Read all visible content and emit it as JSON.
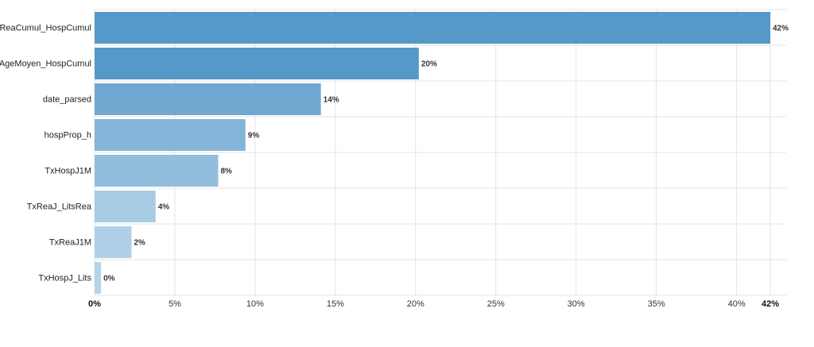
{
  "chart_data": {
    "type": "bar",
    "orientation": "horizontal",
    "title": "",
    "xlabel": "",
    "ylabel": "",
    "categories": [
      "ReaCumul_HospCumul",
      "AgeMoyen_HospCumul",
      "date_parsed",
      "hospProp_h",
      "TxHospJ1M",
      "TxReaJ_LitsRea",
      "TxReaJ1M",
      "TxHospJ_Lits"
    ],
    "values": [
      42.1,
      20.2,
      14.1,
      9.4,
      7.7,
      3.8,
      2.3,
      0.4
    ],
    "value_labels": [
      "42%",
      "20%",
      "14%",
      "9%",
      "8%",
      "4%",
      "2%",
      "0%"
    ],
    "bar_colors": [
      "#5499c7",
      "#5499c7",
      "#6fa8d0",
      "#85b5d9",
      "#92bddc",
      "#a8cbe4",
      "#b0d0e7",
      "#b5d3e8"
    ],
    "xlim": [
      0,
      42.1
    ],
    "xticks": [
      0,
      5,
      10,
      15,
      20,
      25,
      30,
      35,
      40
    ],
    "xtick_labels": [
      "0%",
      "5%",
      "10%",
      "15%",
      "20%",
      "25%",
      "30%",
      "35%",
      "40%"
    ],
    "xmax_label": "42%",
    "grid": true,
    "legend": "none"
  }
}
